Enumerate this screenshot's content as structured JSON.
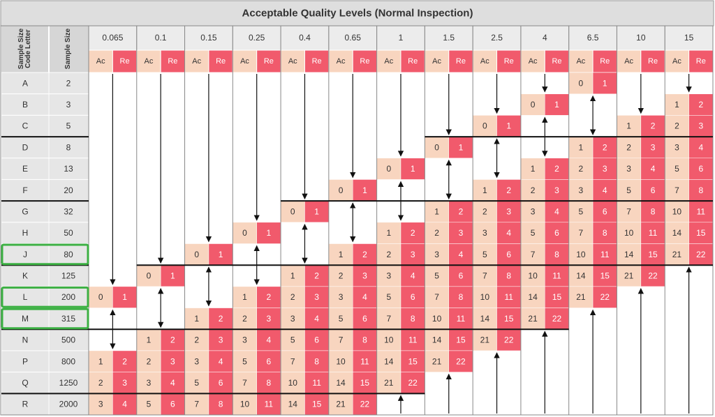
{
  "title": "Acceptable Quality Levels (Normal Inspection)",
  "header": {
    "code_letter": "Sample Size Code Letter",
    "sample_size": "Sample Size",
    "ac": "Ac",
    "re": "Re"
  },
  "aql_levels": [
    "0.065",
    "0.1",
    "0.15",
    "0.25",
    "0.4",
    "0.65",
    "1",
    "1.5",
    "2.5",
    "4",
    "6.5",
    "10",
    "15"
  ],
  "rows": [
    {
      "code": "A",
      "size": 2,
      "cells": [
        null,
        null,
        null,
        null,
        null,
        null,
        null,
        null,
        null,
        null,
        [
          0,
          1
        ],
        null,
        null
      ]
    },
    {
      "code": "B",
      "size": 3,
      "cells": [
        null,
        null,
        null,
        null,
        null,
        null,
        null,
        null,
        null,
        [
          0,
          1
        ],
        null,
        null,
        [
          1,
          2
        ]
      ]
    },
    {
      "code": "C",
      "size": 5,
      "cells": [
        null,
        null,
        null,
        null,
        null,
        null,
        null,
        null,
        [
          0,
          1
        ],
        null,
        null,
        [
          1,
          2
        ],
        [
          2,
          3
        ]
      ]
    },
    {
      "code": "D",
      "size": 8,
      "cells": [
        null,
        null,
        null,
        null,
        null,
        null,
        null,
        [
          0,
          1
        ],
        null,
        null,
        [
          1,
          2
        ],
        [
          2,
          3
        ],
        [
          3,
          4
        ]
      ]
    },
    {
      "code": "E",
      "size": 13,
      "cells": [
        null,
        null,
        null,
        null,
        null,
        null,
        [
          0,
          1
        ],
        null,
        null,
        [
          1,
          2
        ],
        [
          2,
          3
        ],
        [
          3,
          4
        ],
        [
          5,
          6
        ]
      ]
    },
    {
      "code": "F",
      "size": 20,
      "cells": [
        null,
        null,
        null,
        null,
        null,
        [
          0,
          1
        ],
        null,
        null,
        [
          1,
          2
        ],
        [
          2,
          3
        ],
        [
          3,
          4
        ],
        [
          5,
          6
        ],
        [
          7,
          8
        ]
      ]
    },
    {
      "code": "G",
      "size": 32,
      "cells": [
        null,
        null,
        null,
        null,
        [
          0,
          1
        ],
        null,
        null,
        [
          1,
          2
        ],
        [
          2,
          3
        ],
        [
          3,
          4
        ],
        [
          5,
          6
        ],
        [
          7,
          8
        ],
        [
          10,
          11
        ]
      ]
    },
    {
      "code": "H",
      "size": 50,
      "cells": [
        null,
        null,
        null,
        [
          0,
          1
        ],
        null,
        null,
        [
          1,
          2
        ],
        [
          2,
          3
        ],
        [
          3,
          4
        ],
        [
          5,
          6
        ],
        [
          7,
          8
        ],
        [
          10,
          11
        ],
        [
          14,
          15
        ]
      ]
    },
    {
      "code": "J",
      "size": 80,
      "cells": [
        null,
        null,
        [
          0,
          1
        ],
        null,
        null,
        [
          1,
          2
        ],
        [
          2,
          3
        ],
        [
          3,
          4
        ],
        [
          5,
          6
        ],
        [
          7,
          8
        ],
        [
          10,
          11
        ],
        [
          14,
          15
        ],
        [
          21,
          22
        ]
      ]
    },
    {
      "code": "K",
      "size": 125,
      "cells": [
        null,
        [
          0,
          1
        ],
        null,
        null,
        [
          1,
          2
        ],
        [
          2,
          3
        ],
        [
          3,
          4
        ],
        [
          5,
          6
        ],
        [
          7,
          8
        ],
        [
          10,
          11
        ],
        [
          14,
          15
        ],
        [
          21,
          22
        ],
        null
      ]
    },
    {
      "code": "L",
      "size": 200,
      "cells": [
        [
          0,
          1
        ],
        null,
        null,
        [
          1,
          2
        ],
        [
          2,
          3
        ],
        [
          3,
          4
        ],
        [
          5,
          6
        ],
        [
          7,
          8
        ],
        [
          10,
          11
        ],
        [
          14,
          15
        ],
        [
          21,
          22
        ],
        null,
        null
      ]
    },
    {
      "code": "M",
      "size": 315,
      "cells": [
        null,
        null,
        [
          1,
          2
        ],
        [
          2,
          3
        ],
        [
          3,
          4
        ],
        [
          5,
          6
        ],
        [
          7,
          8
        ],
        [
          10,
          11
        ],
        [
          14,
          15
        ],
        [
          21,
          22
        ],
        null,
        null,
        null
      ]
    },
    {
      "code": "N",
      "size": 500,
      "cells": [
        null,
        [
          1,
          2
        ],
        [
          2,
          3
        ],
        [
          3,
          4
        ],
        [
          5,
          6
        ],
        [
          7,
          8
        ],
        [
          10,
          11
        ],
        [
          14,
          15
        ],
        [
          21,
          22
        ],
        null,
        null,
        null,
        null
      ]
    },
    {
      "code": "P",
      "size": 800,
      "cells": [
        [
          1,
          2
        ],
        [
          2,
          3
        ],
        [
          3,
          4
        ],
        [
          5,
          6
        ],
        [
          7,
          8
        ],
        [
          10,
          11
        ],
        [
          14,
          15
        ],
        [
          21,
          22
        ],
        null,
        null,
        null,
        null,
        null
      ]
    },
    {
      "code": "Q",
      "size": 1250,
      "cells": [
        [
          2,
          3
        ],
        [
          3,
          4
        ],
        [
          5,
          6
        ],
        [
          7,
          8
        ],
        [
          10,
          11
        ],
        [
          14,
          15
        ],
        [
          21,
          22
        ],
        null,
        null,
        null,
        null,
        null,
        null
      ]
    },
    {
      "code": "R",
      "size": 2000,
      "cells": [
        [
          3,
          4
        ],
        [
          5,
          6
        ],
        [
          7,
          8
        ],
        [
          10,
          11
        ],
        [
          14,
          15
        ],
        [
          21,
          22
        ],
        null,
        null,
        null,
        null,
        null,
        null,
        null
      ]
    }
  ]
}
